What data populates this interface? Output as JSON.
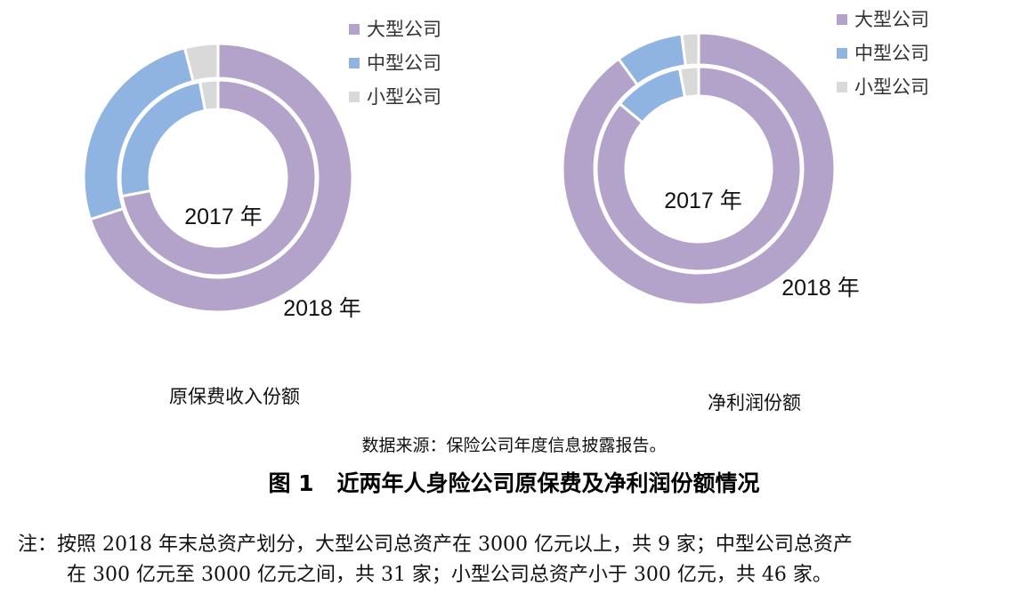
{
  "chart_data": [
    {
      "type": "pie",
      "variant": "concentric-donut",
      "title": "原保费收入份额",
      "categories": [
        "大型公司",
        "中型公司",
        "小型公司"
      ],
      "colors": [
        "#b3a2c9",
        "#8fb4e2",
        "#d9d9d9"
      ],
      "series": [
        {
          "name": "2017 年",
          "ring": "inner",
          "values": [
            72,
            25,
            3
          ]
        },
        {
          "name": "2018 年",
          "ring": "outer",
          "values": [
            70,
            26,
            4
          ]
        }
      ],
      "legend_position": "top-right"
    },
    {
      "type": "pie",
      "variant": "concentric-donut",
      "title": "净利润份额",
      "categories": [
        "大型公司",
        "中型公司",
        "小型公司"
      ],
      "colors": [
        "#b3a2c9",
        "#8fb4e2",
        "#d9d9d9"
      ],
      "series": [
        {
          "name": "2017 年",
          "ring": "inner",
          "values": [
            86,
            11,
            3
          ]
        },
        {
          "name": "2018 年",
          "ring": "outer",
          "values": [
            90,
            8,
            2
          ]
        }
      ],
      "legend_position": "top-right"
    }
  ],
  "source": "数据来源：保险公司年度信息披露报告。",
  "figure": {
    "number": "图 1",
    "title": "近两年人身险公司原保费及净利润份额情况"
  },
  "note": {
    "line1": "注：按照 2018 年末总资产划分，大型公司总资产在 3000 亿元以上，共 9 家；中型公司总资产",
    "line2": "在 300 亿元至 3000  亿元之间，共 31 家；小型公司总资产小于 300 亿元，共 46 家。"
  }
}
